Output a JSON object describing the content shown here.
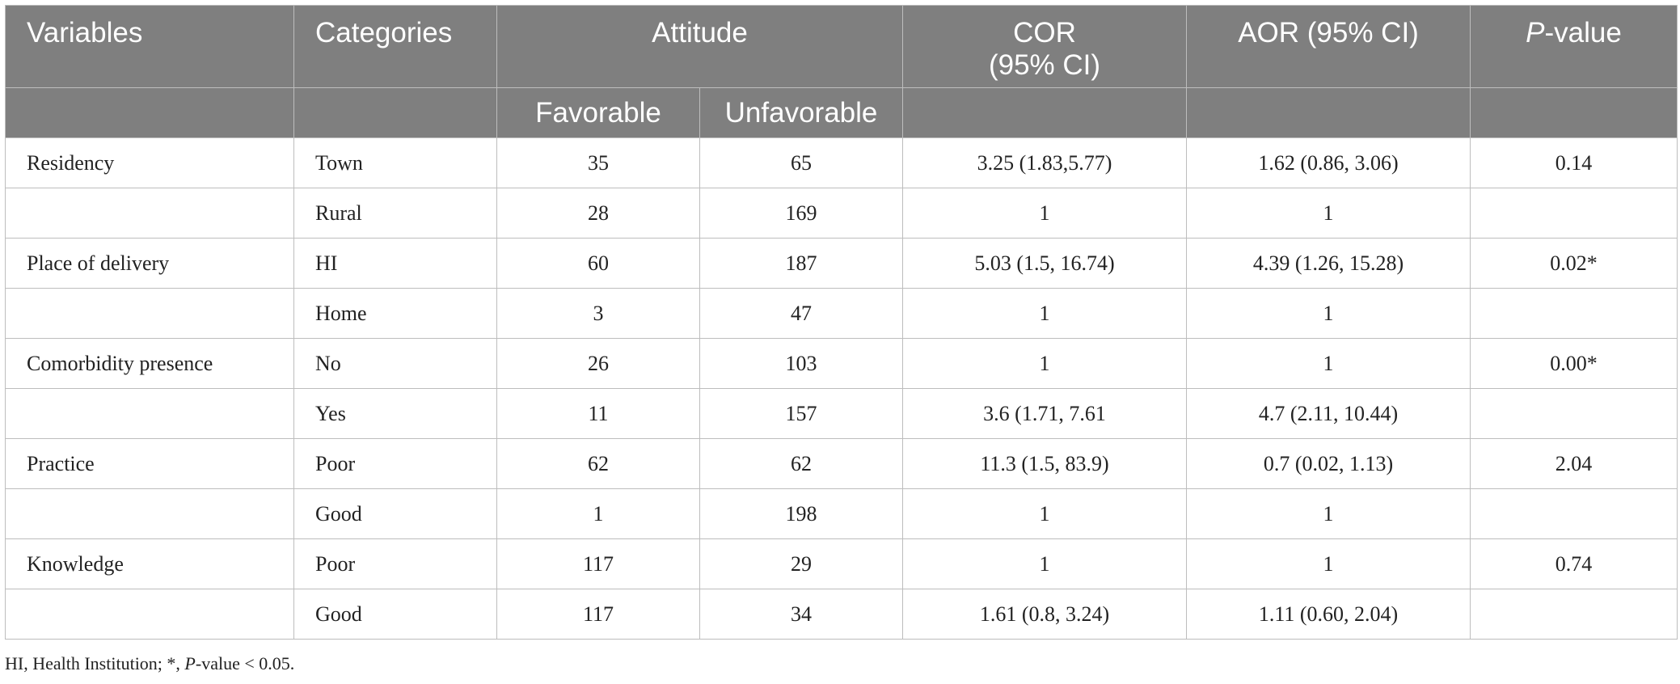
{
  "header": {
    "variables": "Variables",
    "categories": "Categories",
    "attitude": "Attitude",
    "cor_line1": "COR",
    "cor_line2": "(95% CI)",
    "aor": "AOR (95% CI)",
    "p_italic": "P",
    "p_rest": "-value",
    "favorable": "Favorable",
    "unfavorable": "Unfavorable"
  },
  "rows": [
    {
      "variable": "Residency",
      "category": "Town",
      "favorable": "35",
      "unfavorable": "65",
      "cor": "3.25 (1.83,5.77)",
      "aor": "1.62 (0.86, 3.06)",
      "p": "0.14"
    },
    {
      "variable": "",
      "category": "Rural",
      "favorable": "28",
      "unfavorable": "169",
      "cor": "1",
      "aor": "1",
      "p": ""
    },
    {
      "variable": "Place of delivery",
      "category": "HI",
      "favorable": "60",
      "unfavorable": "187",
      "cor": "5.03 (1.5, 16.74)",
      "aor": "4.39 (1.26, 15.28)",
      "p": "0.02*"
    },
    {
      "variable": "",
      "category": "Home",
      "favorable": "3",
      "unfavorable": "47",
      "cor": "1",
      "aor": "1",
      "p": ""
    },
    {
      "variable": "Comorbidity presence",
      "category": "No",
      "favorable": "26",
      "unfavorable": "103",
      "cor": "1",
      "aor": "1",
      "p": "0.00*"
    },
    {
      "variable": "",
      "category": "Yes",
      "favorable": "11",
      "unfavorable": "157",
      "cor": "3.6 (1.71, 7.61",
      "aor": "4.7 (2.11, 10.44)",
      "p": ""
    },
    {
      "variable": "Practice",
      "category": "Poor",
      "favorable": "62",
      "unfavorable": "62",
      "cor": "11.3 (1.5, 83.9)",
      "aor": "0.7 (0.02, 1.13)",
      "p": "2.04"
    },
    {
      "variable": "",
      "category": "Good",
      "favorable": "1",
      "unfavorable": "198",
      "cor": "1",
      "aor": "1",
      "p": ""
    },
    {
      "variable": "Knowledge",
      "category": "Poor",
      "favorable": "117",
      "unfavorable": "29",
      "cor": "1",
      "aor": "1",
      "p": "0.74"
    },
    {
      "variable": "",
      "category": "Good",
      "favorable": "117",
      "unfavorable": "34",
      "cor": "1.61 (0.8, 3.24)",
      "aor": "1.11 (0.60, 2.04)",
      "p": ""
    }
  ],
  "footnote": {
    "part1": "HI, Health Institution; *, ",
    "p_italic": "P",
    "part2": "-value < 0.05."
  },
  "colors": {
    "header_bg": "#7f7f7f",
    "header_text": "#ffffff",
    "grid": "#bdbdbd",
    "body_text": "#222222"
  }
}
